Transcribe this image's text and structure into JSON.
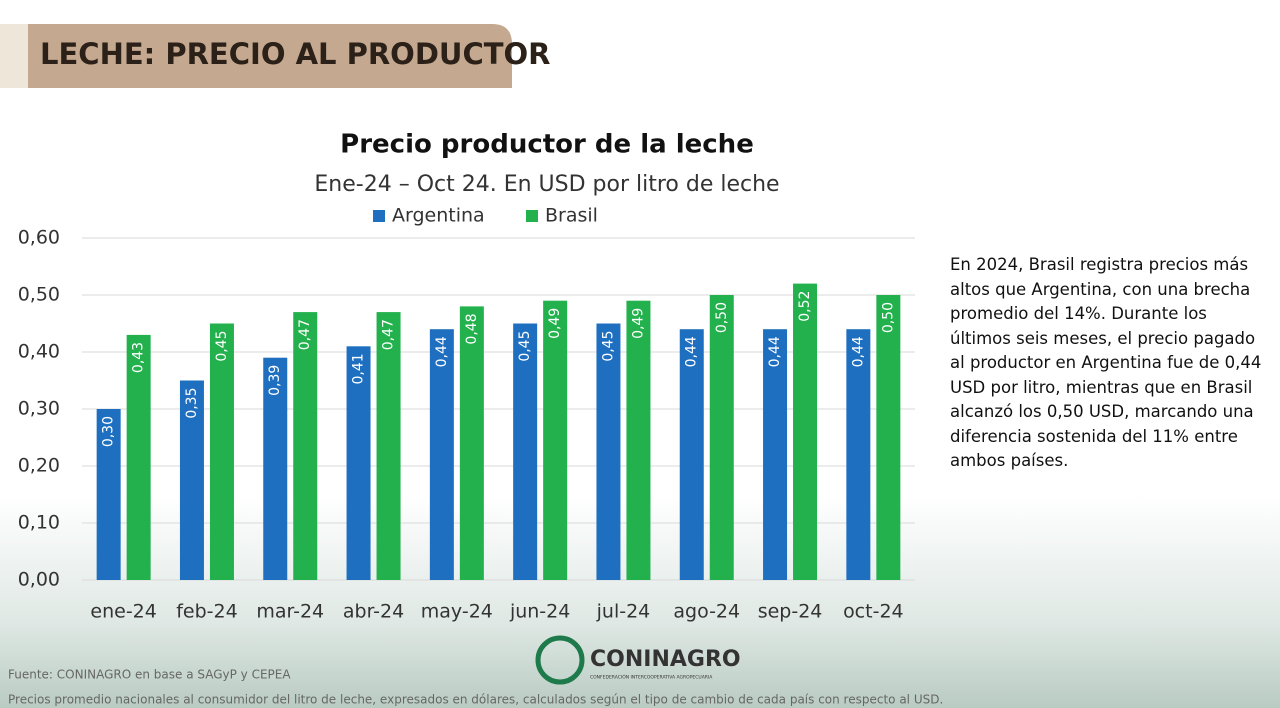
{
  "header": {
    "title": "LECHE: PRECIO AL PRODUCTOR"
  },
  "chart_data": {
    "type": "bar",
    "title": "Precio productor de la leche",
    "subtitle": "Ene-24 – Oct 24. En USD por litro de leche",
    "categories": [
      "ene-24",
      "feb-24",
      "mar-24",
      "abr-24",
      "may-24",
      "jun-24",
      "jul-24",
      "ago-24",
      "sep-24",
      "oct-24"
    ],
    "series": [
      {
        "name": "Argentina",
        "color": "#1f6fc1",
        "values": [
          0.3,
          0.35,
          0.39,
          0.41,
          0.44,
          0.45,
          0.45,
          0.44,
          0.44,
          0.44
        ],
        "value_labels": [
          "0,30",
          "0,35",
          "0,39",
          "0,41",
          "0,44",
          "0,45",
          "0,45",
          "0,44",
          "0,44",
          "0,44"
        ]
      },
      {
        "name": "Brasil",
        "color": "#22b14c",
        "values": [
          0.43,
          0.45,
          0.47,
          0.47,
          0.48,
          0.49,
          0.49,
          0.5,
          0.52,
          0.5
        ],
        "value_labels": [
          "0,43",
          "0,45",
          "0,47",
          "0,47",
          "0,48",
          "0,49",
          "0,49",
          "0,50",
          "0,52",
          "0,50"
        ]
      }
    ],
    "ylim": [
      0,
      0.6
    ],
    "yticks": [
      {
        "value": 0,
        "label": "0,00"
      },
      {
        "value": 0.1,
        "label": "0,10"
      },
      {
        "value": 0.2,
        "label": "0,20"
      },
      {
        "value": 0.3,
        "label": "0,30"
      },
      {
        "value": 0.4,
        "label": "0,40"
      },
      {
        "value": 0.5,
        "label": "0,50"
      },
      {
        "value": 0.6,
        "label": "0,60"
      }
    ],
    "grid": true,
    "legend": "top"
  },
  "commentary": "En 2024, Brasil registra precios más altos que Argentina, con una brecha promedio del 14%. Durante los últimos seis meses, el precio pagado al productor en Argentina fue de 0,44 USD por litro, mientras que en Brasil alcanzó los 0,50 USD, marcando una diferencia sostenida del 11% entre ambos países.",
  "footer": {
    "source": "Fuente: CONINAGRO en base a SAGyP y CEPEA",
    "note": "Precios promedio nacionales al consumidor del litro de leche, expresados en dólares, calculados según el tipo de cambio de cada país con respecto al USD.",
    "logo": "CONINAGRO",
    "logo_subtitle": "CONFEDERACIÓN INTERCOOPERATIVA AGROPECUARIA"
  }
}
